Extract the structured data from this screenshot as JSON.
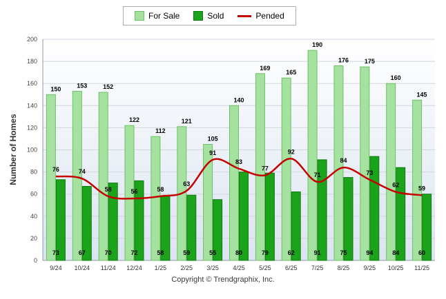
{
  "chart_data": {
    "type": "bar",
    "title": "",
    "categories": [
      "9/24",
      "10/24",
      "11/24",
      "12/24",
      "1/25",
      "2/25",
      "3/25",
      "4/25",
      "5/25",
      "6/25",
      "7/25",
      "8/25",
      "9/25",
      "10/25",
      "11/25"
    ],
    "series": [
      {
        "name": "For Sale",
        "type": "bar",
        "color": "#a6e29f",
        "border": "#6fbf69",
        "values": [
          150,
          153,
          152,
          122,
          112,
          121,
          105,
          140,
          169,
          165,
          190,
          176,
          175,
          160,
          145
        ]
      },
      {
        "name": "Sold",
        "type": "bar",
        "color": "#1ba31b",
        "border": "#0f7a0f",
        "values": [
          73,
          67,
          70,
          72,
          58,
          59,
          55,
          80,
          79,
          62,
          91,
          75,
          94,
          84,
          60
        ]
      },
      {
        "name": "Pended",
        "type": "line",
        "color": "#c40000",
        "values": [
          76,
          74,
          58,
          56,
          58,
          63,
          91,
          83,
          77,
          92,
          71,
          84,
          73,
          62,
          59
        ]
      }
    ],
    "xlabel": "",
    "ylabel": "Number of Homes",
    "ylim": [
      0,
      200
    ],
    "ytick_step": 20,
    "grid": true,
    "legend_position": "top"
  },
  "footer": {
    "copyright": "Copyright © Trendgraphix, Inc."
  }
}
